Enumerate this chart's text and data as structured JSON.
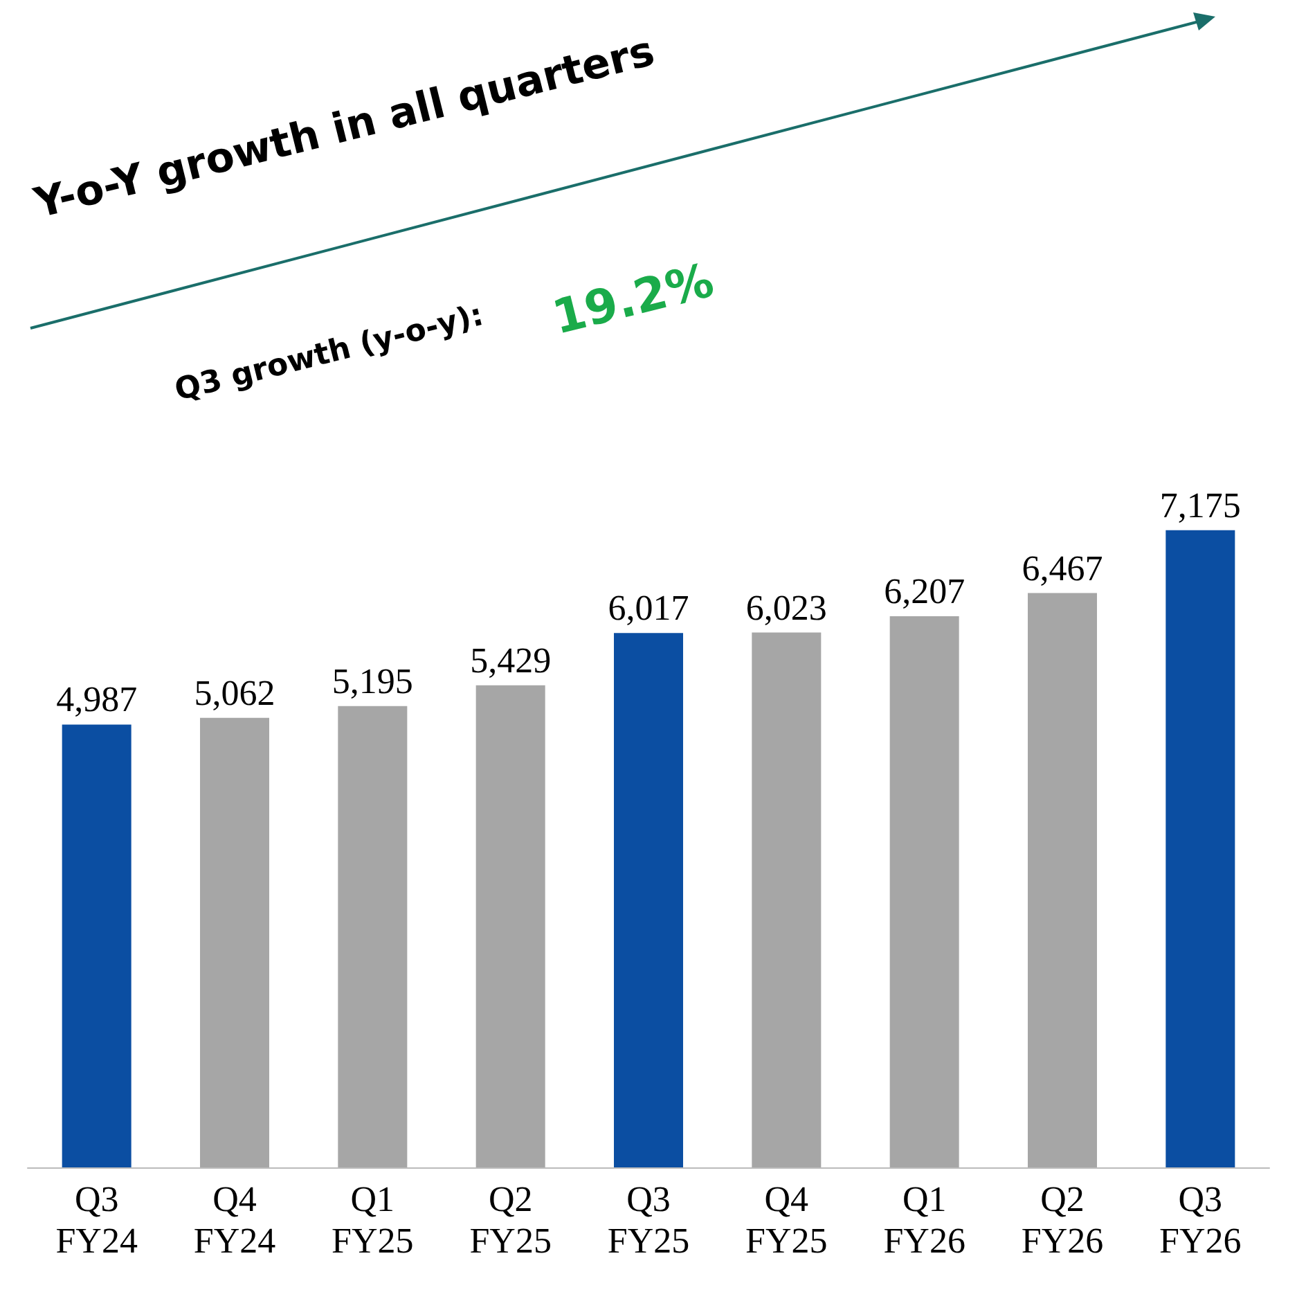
{
  "chart_data": {
    "type": "bar",
    "categories": [
      "Q3\nFY24",
      "Q4\nFY24",
      "Q1\nFY25",
      "Q2\nFY25",
      "Q3\nFY25",
      "Q4\nFY25",
      "Q1\nFY26",
      "Q2\nFY26",
      "Q3\nFY26"
    ],
    "values": [
      4987,
      5062,
      5195,
      5429,
      6017,
      6023,
      6207,
      6467,
      7175
    ],
    "colors": [
      "#0b4ea2",
      "#a6a6a6",
      "#a6a6a6",
      "#a6a6a6",
      "#0b4ea2",
      "#a6a6a6",
      "#a6a6a6",
      "#a6a6a6",
      "#0b4ea2"
    ],
    "value_labels": [
      "4,987",
      "5,062",
      "5,195",
      "5,429",
      "6,017",
      "6,023",
      "6,207",
      "6,467",
      "7,175"
    ],
    "annotations": [
      "Y-o-Y growth in all quarters",
      "Q3 growth (y-o-y):",
      "19.2%"
    ]
  }
}
